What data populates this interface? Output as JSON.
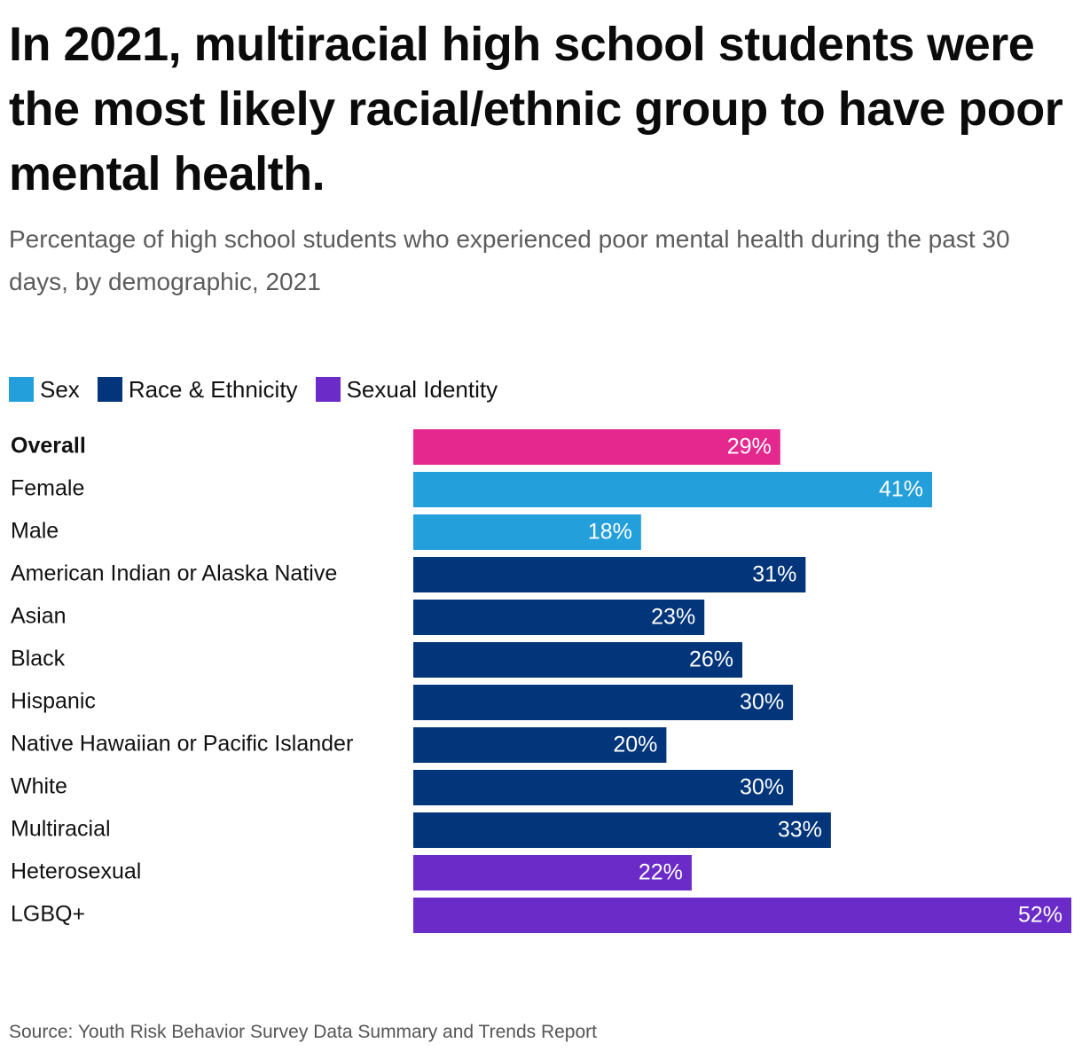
{
  "chart_data": {
    "type": "bar",
    "orientation": "horizontal",
    "title": "In 2021, multiracial high school students were the most likely racial/ethnic group to have poor mental health.",
    "subtitle": "Percentage of high school students who experienced poor mental health during the past 30 days, by demographic, 2021",
    "xlim": [
      0,
      52
    ],
    "grid": false,
    "legend_placement": "top-left",
    "legend": [
      {
        "name": "Sex",
        "color": "#239fdc"
      },
      {
        "name": "Race & Ethnicity",
        "color": "#03357a"
      },
      {
        "name": "Sexual Identity",
        "color": "#6a2bc8"
      }
    ],
    "value_suffix": "%",
    "bars": [
      {
        "category": "Overall",
        "value": 29,
        "color": "#e5288e"
      },
      {
        "category": "Female",
        "value": 41,
        "color": "#239fdc"
      },
      {
        "category": "Male",
        "value": 18,
        "color": "#239fdc"
      },
      {
        "category": "American Indian or Alaska Native",
        "value": 31,
        "color": "#03357a"
      },
      {
        "category": "Asian",
        "value": 23,
        "color": "#03357a"
      },
      {
        "category": "Black",
        "value": 26,
        "color": "#03357a"
      },
      {
        "category": "Hispanic",
        "value": 30,
        "color": "#03357a"
      },
      {
        "category": "Native Hawaiian or Pacific Islander",
        "value": 20,
        "color": "#03357a"
      },
      {
        "category": "White",
        "value": 30,
        "color": "#03357a"
      },
      {
        "category": "Multiracial",
        "value": 33,
        "color": "#03357a"
      },
      {
        "category": "Heterosexual",
        "value": 22,
        "color": "#6a2bc8"
      },
      {
        "category": "LGBQ+",
        "value": 52,
        "color": "#6a2bc8"
      }
    ],
    "source": "Source: Youth Risk Behavior Survey Data Summary and Trends Report"
  }
}
